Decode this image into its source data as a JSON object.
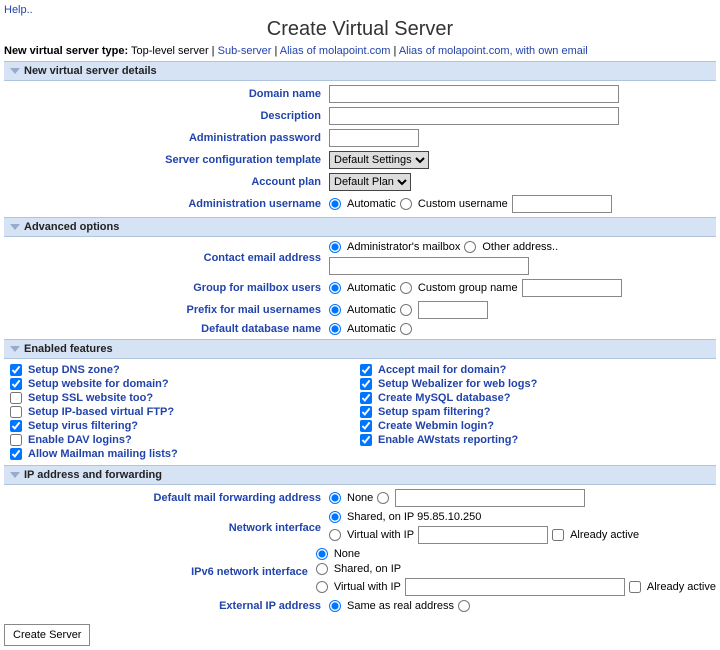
{
  "help": "Help..",
  "title": "Create Virtual Server",
  "typebar": {
    "prefix": "New virtual server type:",
    "opts": [
      "Top-level server",
      "Sub-server",
      "Alias of molapoint.com",
      "Alias of molapoint.com, with own email"
    ]
  },
  "sec1": {
    "head": "New virtual server details",
    "domain": "Domain name",
    "desc": "Description",
    "pwd": "Administration password",
    "tmpl": "Server configuration template",
    "tmpl_val": "Default Settings",
    "plan": "Account plan",
    "plan_val": "Default Plan",
    "user": "Administration username",
    "auto": "Automatic",
    "custom_user": "Custom username"
  },
  "sec2": {
    "head": "Advanced options",
    "email": "Contact email address",
    "admin_mail": "Administrator's mailbox",
    "other_addr": "Other address..",
    "group": "Group for mailbox users",
    "custom_group": "Custom group name",
    "prefix": "Prefix for mail usernames",
    "db": "Default database name",
    "auto": "Automatic"
  },
  "sec3": {
    "head": "Enabled features",
    "left": [
      "Setup DNS zone?",
      "Setup website for domain?",
      "Setup SSL website too?",
      "Setup IP-based virtual FTP?",
      "Setup virus filtering?",
      "Enable DAV logins?",
      "Allow Mailman mailing lists?"
    ],
    "right": [
      "Accept mail for domain?",
      "Setup Webalizer for web logs?",
      "Create MySQL database?",
      "Setup spam filtering?",
      "Create Webmin login?",
      "Enable AWstats reporting?"
    ]
  },
  "sec4": {
    "head": "IP address and forwarding",
    "fwd": "Default mail forwarding address",
    "none": "None",
    "netif": "Network interface",
    "shared_ip": "Shared, on IP 95.85.10.250",
    "virtual_ip": "Virtual with IP",
    "already": "Already active",
    "ipv6": "IPv6 network interface",
    "shared_on_ip": "Shared, on IP",
    "extip": "External IP address",
    "same": "Same as real address"
  },
  "button": "Create Server",
  "feat_checked_left": [
    true,
    true,
    false,
    false,
    true,
    false,
    true
  ],
  "feat_checked_right": [
    true,
    true,
    true,
    true,
    true,
    true
  ]
}
